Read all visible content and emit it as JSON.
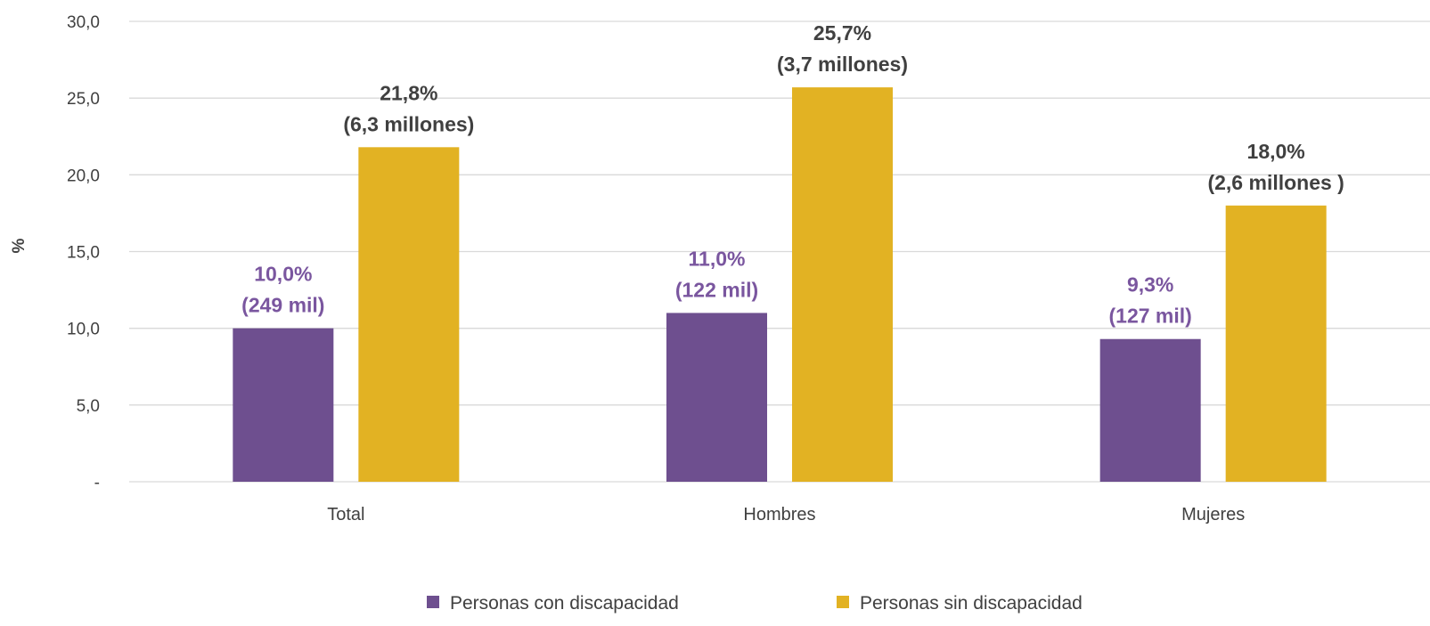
{
  "chart_data": {
    "type": "bar",
    "categories": [
      "Total",
      "Hombres",
      "Mujeres"
    ],
    "ylabel": "%",
    "ylim": [
      0,
      30
    ],
    "y_ticks": [
      0,
      5,
      10,
      15,
      20,
      25,
      30
    ],
    "y_tick_labels": [
      "-",
      "5,0",
      "10,0",
      "15,0",
      "20,0",
      "25,0",
      "30,0"
    ],
    "grid": true,
    "legend_position": "bottom",
    "series": [
      {
        "name": "Personas con discapacidad",
        "color": "#6e4f8f",
        "values": [
          10.0,
          11.0,
          9.3
        ],
        "labels": [
          [
            "10,0%",
            "(249 mil)"
          ],
          [
            "11,0%",
            "(122 mil)"
          ],
          [
            "9,3%",
            "(127 mil)"
          ]
        ],
        "label_color": "#7a569f"
      },
      {
        "name": "Personas sin discapacidad",
        "color": "#e2b223",
        "values": [
          21.8,
          25.7,
          18.0
        ],
        "labels": [
          [
            "21,8%",
            "(6,3 millones)"
          ],
          [
            "25,7%",
            "(3,7 millones)"
          ],
          [
            "18,0%",
            "(2,6 millones )"
          ]
        ],
        "label_color": "#404040"
      }
    ]
  }
}
